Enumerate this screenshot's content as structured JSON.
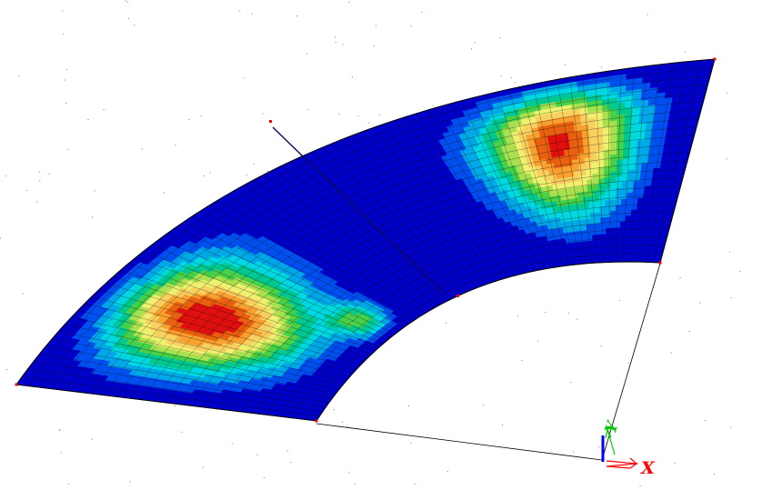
{
  "viewport": {
    "background": "#ffffff",
    "grid_dot_color": "#7a7a7a",
    "outline_color": "#000000",
    "mesh_color": "#000000",
    "node_marker_color": "#ff0000"
  },
  "contour": {
    "levels": 12,
    "colormap": [
      "#0000c8",
      "#0050f0",
      "#00a8e8",
      "#00d8e0",
      "#00c890",
      "#48d048",
      "#a8e050",
      "#f0f070",
      "#f8d060",
      "#f8a030",
      "#e86010",
      "#e01010"
    ]
  },
  "triad": {
    "x_label": "X",
    "y_label": "Y",
    "x_color": "#ff0000",
    "y_color": "#00cc00",
    "z_color": "#0000ff"
  }
}
